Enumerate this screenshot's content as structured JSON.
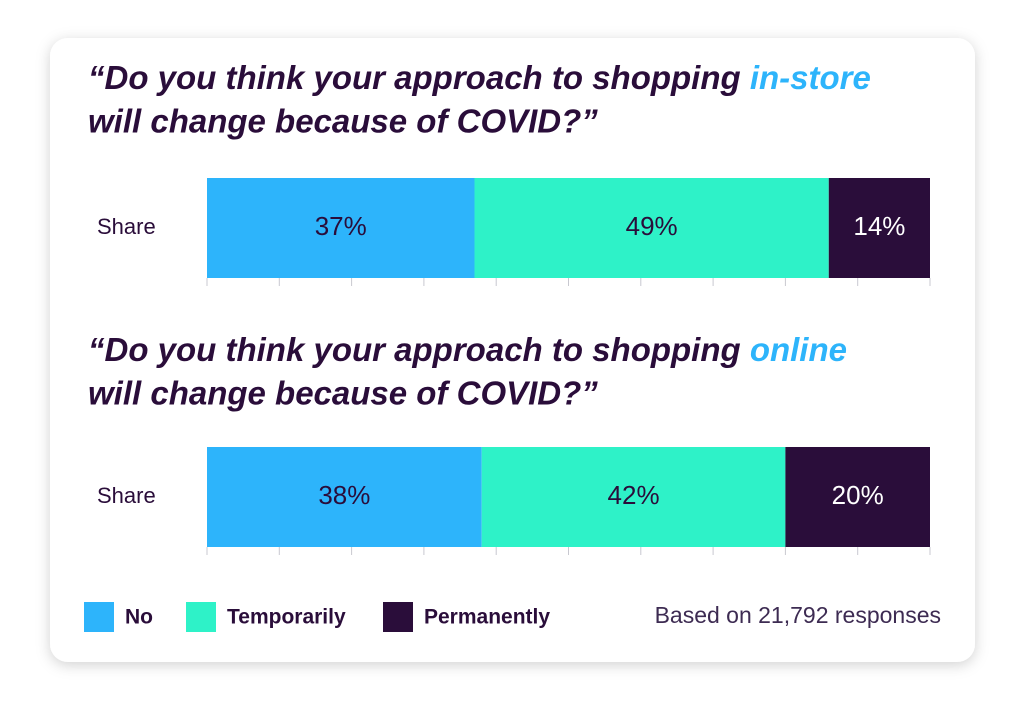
{
  "chart_data": [
    {
      "type": "bar",
      "orientation": "horizontal",
      "stacked": true,
      "title_line1": "“Do you think your approach to shopping ",
      "title_highlight": "in-store",
      "title_line2": "will change because of COVID?”",
      "highlight_color": "#2db4fb",
      "categories": [
        "Share"
      ],
      "series": [
        {
          "name": "No",
          "color": "#2db4fb",
          "label_color": "#2a0d3a",
          "values": [
            37
          ],
          "value_labels": [
            "37%"
          ]
        },
        {
          "name": "Temporarily",
          "color": "#2ef2c8",
          "label_color": "#2a0d3a",
          "values": [
            49
          ],
          "value_labels": [
            "49%"
          ]
        },
        {
          "name": "Permanently",
          "color": "#2a0d3a",
          "label_color": "#ffffff",
          "values": [
            14
          ],
          "value_labels": [
            "14%"
          ]
        }
      ],
      "xlim": [
        0,
        100
      ],
      "xticks": [
        0,
        10,
        20,
        30,
        40,
        50,
        60,
        70,
        80,
        90,
        100
      ],
      "show_tick_labels": false
    },
    {
      "type": "bar",
      "orientation": "horizontal",
      "stacked": true,
      "title_line1": "“Do you think your approach to shopping ",
      "title_highlight": "online",
      "title_line2": "will change because of COVID?”",
      "highlight_color": "#2db4fb",
      "categories": [
        "Share"
      ],
      "series": [
        {
          "name": "No",
          "color": "#2db4fb",
          "label_color": "#2a0d3a",
          "values": [
            38
          ],
          "value_labels": [
            "38%"
          ]
        },
        {
          "name": "Temporarily",
          "color": "#2ef2c8",
          "label_color": "#2a0d3a",
          "values": [
            42
          ],
          "value_labels": [
            "42%"
          ]
        },
        {
          "name": "Permanently",
          "color": "#2a0d3a",
          "label_color": "#ffffff",
          "values": [
            20
          ],
          "value_labels": [
            "20%"
          ]
        }
      ],
      "xlim": [
        0,
        100
      ],
      "xticks": [
        0,
        10,
        20,
        30,
        40,
        50,
        60,
        70,
        80,
        90,
        100
      ],
      "show_tick_labels": false
    }
  ],
  "footnote": "Based on 21,792 responses"
}
